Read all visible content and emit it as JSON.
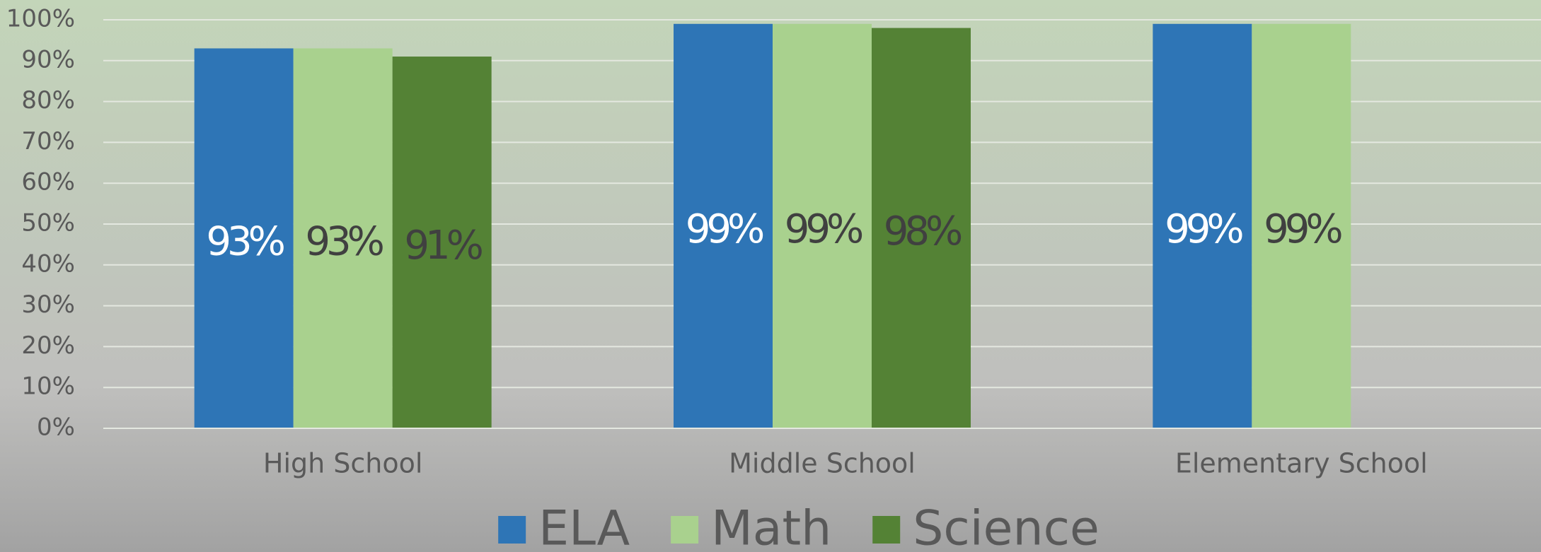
{
  "chart_data": {
    "type": "bar",
    "categories": [
      "High School",
      "Middle School",
      "Elementary School"
    ],
    "series": [
      {
        "name": "ELA",
        "color": "#2e75b6",
        "label_color": "#ffffff",
        "values": [
          93,
          99,
          99
        ],
        "value_labels": [
          "93%",
          "99%",
          "99%"
        ]
      },
      {
        "name": "Math",
        "color": "#a9d18e",
        "label_color": "#404040",
        "values": [
          93,
          99,
          99
        ],
        "value_labels": [
          "93%",
          "99%",
          "99%"
        ]
      },
      {
        "name": "Science",
        "color": "#548235",
        "label_color": "#404040",
        "values": [
          91,
          98,
          null
        ],
        "value_labels": [
          "91%",
          "98%",
          null
        ]
      }
    ],
    "ylim": [
      0,
      100
    ],
    "yticks": [
      {
        "value": 0,
        "label": "0%"
      },
      {
        "value": 10,
        "label": "10%"
      },
      {
        "value": 20,
        "label": "20%"
      },
      {
        "value": 30,
        "label": "30%"
      },
      {
        "value": 40,
        "label": "40%"
      },
      {
        "value": 50,
        "label": "50%"
      },
      {
        "value": 60,
        "label": "60%"
      },
      {
        "value": 70,
        "label": "70%"
      },
      {
        "value": 80,
        "label": "80%"
      },
      {
        "value": 90,
        "label": "90%"
      },
      {
        "value": 100,
        "label": "100%"
      }
    ],
    "grid": true,
    "legend": "bottom"
  }
}
